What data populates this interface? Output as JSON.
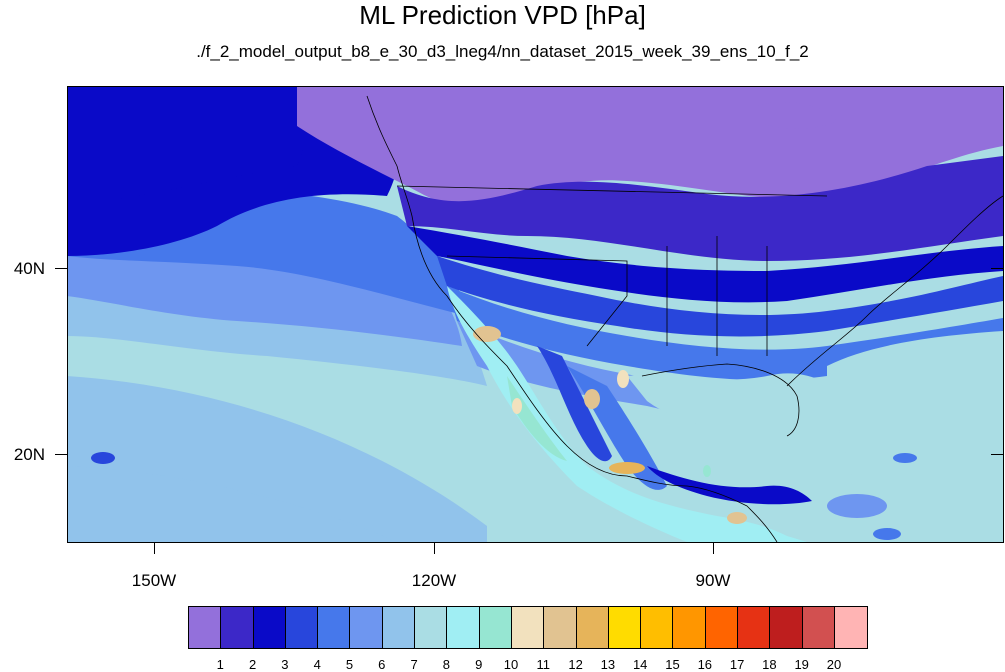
{
  "title": "ML Prediction VPD [hPa]",
  "subtitle": "./f_2_model_output_b8_e_30_d3_lneg4/nn_dataset_2015_week_39_ens_10_f_2",
  "map": {
    "variable": "VPD",
    "units": "hPa",
    "lat_labels": [
      "40N",
      "20N"
    ],
    "lon_labels": [
      "150W",
      "120W",
      "90W"
    ]
  },
  "colorbar": {
    "labels": [
      "1",
      "2",
      "3",
      "4",
      "5",
      "6",
      "7",
      "8",
      "9",
      "10",
      "11",
      "12",
      "13",
      "14",
      "15",
      "16",
      "17",
      "18",
      "19",
      "20"
    ],
    "colors": [
      "#9370db",
      "#3c28c8",
      "#0a0ac8",
      "#2846dc",
      "#4678eb",
      "#6e96f0",
      "#91c3eb",
      "#aadde4",
      "#a0eef3",
      "#96e6d2",
      "#f2e1be",
      "#e1c391",
      "#e6b45a",
      "#ffdc00",
      "#ffbe00",
      "#ff9600",
      "#ff6400",
      "#e63214",
      "#be1e1e",
      "#d25050",
      "#ffb4b4"
    ]
  }
}
